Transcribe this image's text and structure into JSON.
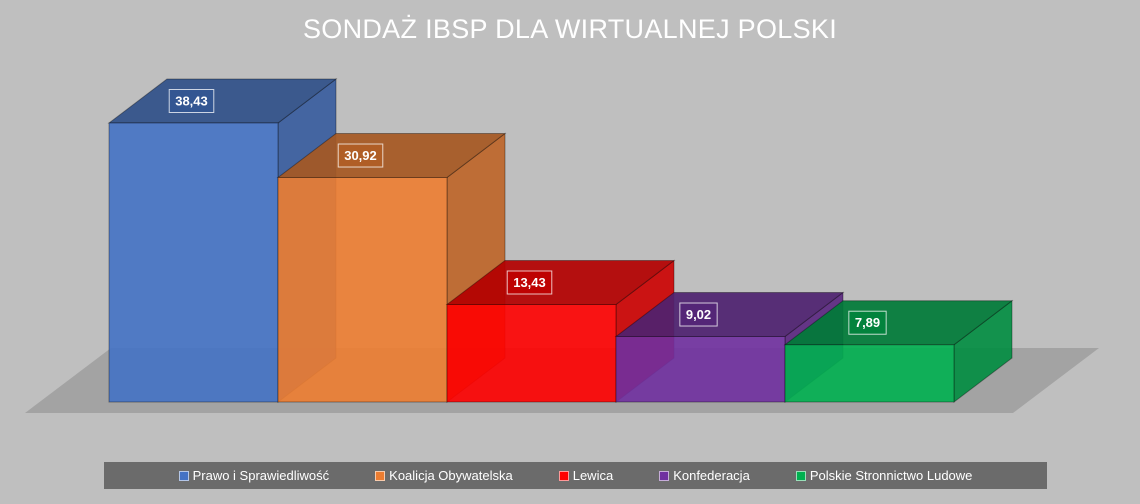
{
  "chart_data": {
    "type": "bar",
    "title": "SONDAŻ IBSP DLA WIRTUALNEJ POLSKI",
    "categories": [
      "Prawo i Sprawiedliwość",
      "Koalicja Obywatelska",
      "Lewica",
      "Konfederacja",
      "Polskie Stronnictwo Ludowe"
    ],
    "values": [
      38.43,
      30.92,
      13.43,
      9.02,
      7.89
    ],
    "value_labels": [
      "38,43",
      "30,92",
      "13,43",
      "9,02",
      "7,89"
    ],
    "colors": [
      "#4472c4",
      "#ed7d31",
      "#ff0000",
      "#7030a0",
      "#00b050"
    ],
    "ylim": [
      0,
      40
    ],
    "grid": false,
    "legend": "bottom",
    "style": "3d"
  }
}
